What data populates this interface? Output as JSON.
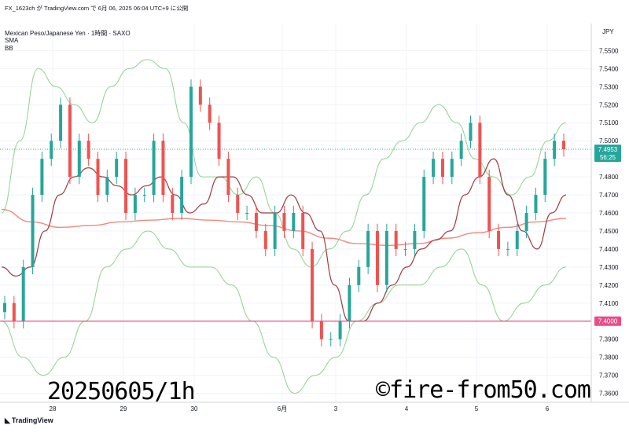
{
  "header": {
    "publish_line": "FX_1623ch が TradingView.com で 6月 06, 2025 06:04 UTC+9 に公開",
    "symbol_line": "Mexican Peso/Japanese Yen · 1時間 · SAXO",
    "indicator_sma": "SMA",
    "indicator_bb": "BB"
  },
  "overlay_text": {
    "left": "20250605/1h",
    "right": "©fire-from50.com"
  },
  "footer": {
    "logo_label": "TradingView",
    "logo_icon": "tradingview-logo-icon"
  },
  "colors": {
    "up": "#26a69a",
    "down": "#ef5350",
    "bb": "#8fd18f",
    "sma_short": "#a0393f",
    "sma_long": "#f08a7e",
    "hline": "#ea4c89",
    "last_price_bg": "#26a69a"
  },
  "chart_data": {
    "type": "candlestick",
    "currency_label": "JPY",
    "ylim": [
      7.355,
      7.565
    ],
    "y_ticks": [
      "7.5500",
      "7.5400",
      "7.5300",
      "7.5200",
      "7.5100",
      "7.5000",
      "7.4900",
      "7.4800",
      "7.4700",
      "7.4600",
      "7.4500",
      "7.4400",
      "7.4300",
      "7.4200",
      "7.4100",
      "7.4000",
      "7.3900",
      "7.3800",
      "7.3700",
      "7.3600"
    ],
    "x_ticks": [
      "28",
      "29",
      "30",
      "6月",
      "3",
      "4",
      "5",
      "6"
    ],
    "last_price": {
      "value": "7.4953",
      "countdown": "56:25"
    },
    "horizontal_line": {
      "value": "7.4000"
    },
    "candles_close": [
      7.41,
      7.4,
      7.43,
      7.47,
      7.49,
      7.5,
      7.52,
      7.48,
      7.5,
      7.49,
      7.47,
      7.48,
      7.49,
      7.46,
      7.47,
      7.47,
      7.5,
      7.47,
      7.46,
      7.48,
      7.53,
      7.52,
      7.51,
      7.49,
      7.47,
      7.46,
      7.46,
      7.45,
      7.44,
      7.46,
      7.45,
      7.46,
      7.44,
      7.4,
      7.39,
      7.39,
      7.4,
      7.42,
      7.43,
      7.45,
      7.42,
      7.45,
      7.44,
      7.44,
      7.45,
      7.48,
      7.49,
      7.48,
      7.49,
      7.5,
      7.51,
      7.48,
      7.45,
      7.44,
      7.44,
      7.45,
      7.46,
      7.47,
      7.49,
      7.5,
      7.4953
    ],
    "sma_short_series": [
      7.43,
      7.425,
      7.43,
      7.45,
      7.47,
      7.48,
      7.485,
      7.48,
      7.475,
      7.47,
      7.475,
      7.48,
      7.47,
      7.46,
      7.465,
      7.48,
      7.48,
      7.47,
      7.46,
      7.46,
      7.47,
      7.46,
      7.45,
      7.42,
      7.4,
      7.4,
      7.41,
      7.42,
      7.43,
      7.44,
      7.445,
      7.45,
      7.47,
      7.48,
      7.49,
      7.47,
      7.45,
      7.44,
      7.46,
      7.47
    ],
    "sma_long_series": [
      7.462,
      7.455,
      7.452,
      7.453,
      7.455,
      7.456,
      7.457,
      7.456,
      7.455,
      7.453,
      7.45,
      7.446,
      7.443,
      7.442,
      7.443,
      7.446,
      7.449,
      7.452,
      7.455,
      7.457
    ],
    "bb_upper_series": [
      7.46,
      7.5,
      7.54,
      7.53,
      7.52,
      7.51,
      7.53,
      7.54,
      7.545,
      7.54,
      7.51,
      7.48,
      7.48,
      7.47,
      7.48,
      7.46,
      7.44,
      7.43,
      7.44,
      7.45,
      7.47,
      7.49,
      7.5,
      7.51,
      7.52,
      7.51,
      7.49,
      7.48,
      7.47,
      7.48,
      7.5,
      7.51
    ],
    "bb_lower_series": [
      7.4,
      7.38,
      7.37,
      7.38,
      7.4,
      7.43,
      7.44,
      7.45,
      7.44,
      7.43,
      7.43,
      7.42,
      7.4,
      7.38,
      7.36,
      7.37,
      7.38,
      7.4,
      7.41,
      7.42,
      7.42,
      7.43,
      7.44,
      7.42,
      7.4,
      7.41,
      7.42,
      7.43
    ]
  }
}
